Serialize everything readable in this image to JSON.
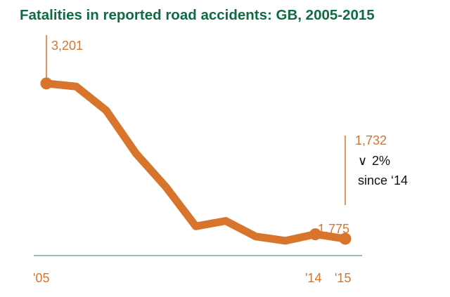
{
  "colors": {
    "title": "#0f6b44",
    "series": "#d8742b",
    "axis": "#2e8a5a",
    "text": "#111111"
  },
  "chart_data": {
    "type": "line",
    "title": "Fatalities in reported road accidents: GB, 2005-2015",
    "x": [
      2005,
      2006,
      2007,
      2008,
      2009,
      2010,
      2011,
      2012,
      2013,
      2014,
      2015
    ],
    "series": [
      {
        "values": [
          3201,
          3172,
          2946,
          2538,
          2222,
          1850,
          1901,
          1754,
          1713,
          1775,
          1732
        ]
      }
    ],
    "ylim": [
      1500,
      3300
    ],
    "xtick_labels": [
      {
        "x": 2005,
        "label": "'05"
      },
      {
        "x": 2014,
        "label": "'14"
      },
      {
        "x": 2015,
        "label": "'15"
      }
    ],
    "annotations": [
      {
        "x": 2005,
        "label": "3,201"
      },
      {
        "x": 2014,
        "label": "1,775"
      },
      {
        "x": 2015,
        "label": "1,732"
      }
    ],
    "change_note": {
      "arrow": "∨",
      "value": "2%",
      "text": "since ‘14"
    }
  }
}
